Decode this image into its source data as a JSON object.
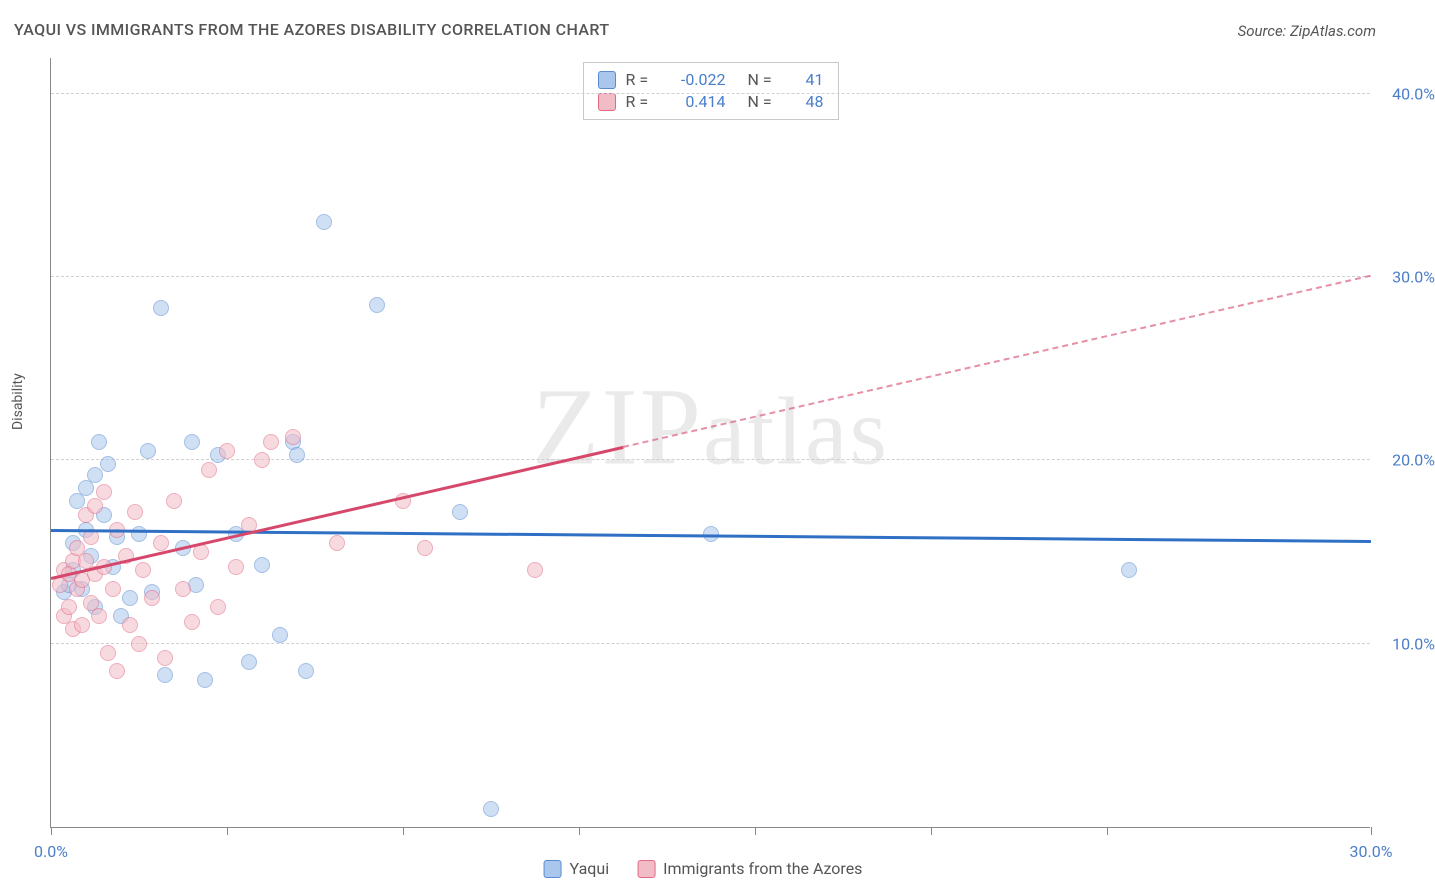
{
  "title": "YAQUI VS IMMIGRANTS FROM THE AZORES DISABILITY CORRELATION CHART",
  "source": "Source: ZipAtlas.com",
  "watermark_primary": "ZIP",
  "watermark_secondary": "atlas",
  "ylabel": "Disability",
  "chart": {
    "type": "scatter",
    "xlim": [
      0.0,
      30.0
    ],
    "ylim": [
      0.0,
      42.0
    ],
    "x_ticks": [
      0.0,
      4.0,
      8.0,
      12.0,
      16.0,
      20.0,
      24.0,
      30.0
    ],
    "x_tick_labels": {
      "0.0": "0.0%",
      "30.0": "30.0%"
    },
    "y_gridlines": [
      10.0,
      20.0,
      30.0,
      40.0
    ],
    "y_tick_labels": {
      "10.0": "10.0%",
      "20.0": "20.0%",
      "30.0": "30.0%",
      "40.0": "40.0%"
    },
    "grid_color": "#d0d0d0",
    "axis_color": "#888",
    "tick_label_color": "#4a7ec9",
    "background_color": "#ffffff",
    "marker_size": 16,
    "marker_opacity": 0.55
  },
  "series": [
    {
      "name": "Yaqui",
      "fill": "#a9c6ec",
      "stroke": "#5b8bd0",
      "trend_color": "#2f6fc4",
      "R": "-0.022",
      "N": "41",
      "trend": {
        "x1": 0.0,
        "y1": 16.1,
        "x2": 30.0,
        "y2": 15.5,
        "dashed_from": null
      },
      "points": [
        [
          0.3,
          12.8
        ],
        [
          0.4,
          13.2
        ],
        [
          0.5,
          14.0
        ],
        [
          0.5,
          15.5
        ],
        [
          0.6,
          17.8
        ],
        [
          0.7,
          13.0
        ],
        [
          0.8,
          18.5
        ],
        [
          0.8,
          16.2
        ],
        [
          0.9,
          14.8
        ],
        [
          1.0,
          19.2
        ],
        [
          1.0,
          12.0
        ],
        [
          1.1,
          21.0
        ],
        [
          1.2,
          17.0
        ],
        [
          1.3,
          19.8
        ],
        [
          1.4,
          14.2
        ],
        [
          1.5,
          15.8
        ],
        [
          1.6,
          11.5
        ],
        [
          1.8,
          12.5
        ],
        [
          2.0,
          16.0
        ],
        [
          2.2,
          20.5
        ],
        [
          2.3,
          12.8
        ],
        [
          2.5,
          28.3
        ],
        [
          2.6,
          8.3
        ],
        [
          3.0,
          15.2
        ],
        [
          3.2,
          21.0
        ],
        [
          3.3,
          13.2
        ],
        [
          3.5,
          8.0
        ],
        [
          3.8,
          20.3
        ],
        [
          4.2,
          16.0
        ],
        [
          4.5,
          9.0
        ],
        [
          4.8,
          14.3
        ],
        [
          5.2,
          10.5
        ],
        [
          5.5,
          21.0
        ],
        [
          5.6,
          20.3
        ],
        [
          5.8,
          8.5
        ],
        [
          6.2,
          33.0
        ],
        [
          7.4,
          28.5
        ],
        [
          9.3,
          17.2
        ],
        [
          10.0,
          1.0
        ],
        [
          15.0,
          16.0
        ],
        [
          24.5,
          14.0
        ]
      ]
    },
    {
      "name": "Immigrants from the Azores",
      "fill": "#f2bcc7",
      "stroke": "#e16a84",
      "trend_color": "#d6486b",
      "R": "0.414",
      "N": "48",
      "trend": {
        "x1": 0.0,
        "y1": 13.5,
        "x2": 30.0,
        "y2": 30.0,
        "dashed_from": 13.0
      },
      "points": [
        [
          0.2,
          13.2
        ],
        [
          0.3,
          11.5
        ],
        [
          0.3,
          14.0
        ],
        [
          0.4,
          12.0
        ],
        [
          0.4,
          13.8
        ],
        [
          0.5,
          10.8
        ],
        [
          0.5,
          14.5
        ],
        [
          0.6,
          13.0
        ],
        [
          0.6,
          15.2
        ],
        [
          0.7,
          11.0
        ],
        [
          0.7,
          13.5
        ],
        [
          0.8,
          14.5
        ],
        [
          0.8,
          17.0
        ],
        [
          0.9,
          12.2
        ],
        [
          0.9,
          15.8
        ],
        [
          1.0,
          13.8
        ],
        [
          1.0,
          17.5
        ],
        [
          1.1,
          11.5
        ],
        [
          1.2,
          14.2
        ],
        [
          1.2,
          18.3
        ],
        [
          1.3,
          9.5
        ],
        [
          1.4,
          13.0
        ],
        [
          1.5,
          16.2
        ],
        [
          1.5,
          8.5
        ],
        [
          1.7,
          14.8
        ],
        [
          1.8,
          11.0
        ],
        [
          1.9,
          17.2
        ],
        [
          2.0,
          10.0
        ],
        [
          2.1,
          14.0
        ],
        [
          2.3,
          12.5
        ],
        [
          2.5,
          15.5
        ],
        [
          2.6,
          9.2
        ],
        [
          2.8,
          17.8
        ],
        [
          3.0,
          13.0
        ],
        [
          3.2,
          11.2
        ],
        [
          3.4,
          15.0
        ],
        [
          3.6,
          19.5
        ],
        [
          3.8,
          12.0
        ],
        [
          4.0,
          20.5
        ],
        [
          4.2,
          14.2
        ],
        [
          4.5,
          16.5
        ],
        [
          4.8,
          20.0
        ],
        [
          5.0,
          21.0
        ],
        [
          5.5,
          21.3
        ],
        [
          6.5,
          15.5
        ],
        [
          8.0,
          17.8
        ],
        [
          8.5,
          15.2
        ],
        [
          11.0,
          14.0
        ]
      ]
    }
  ],
  "bottom_legend": [
    {
      "label": "Yaqui",
      "fill": "#a9c6ec",
      "stroke": "#5b8bd0"
    },
    {
      "label": "Immigrants from the Azores",
      "fill": "#f2bcc7",
      "stroke": "#e16a84"
    }
  ]
}
